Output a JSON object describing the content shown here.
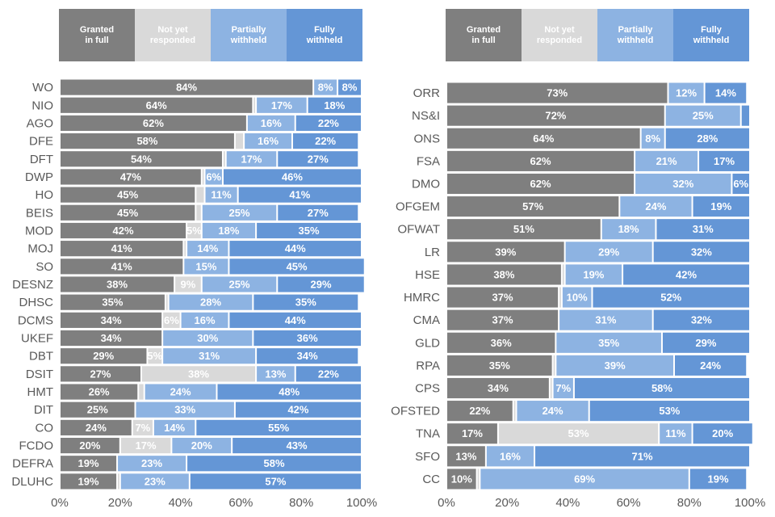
{
  "colors": {
    "granted": "#7f7f7f",
    "notyet": "#d9d9d9",
    "partial": "#8db3e2",
    "full": "#6496d6"
  },
  "legend": [
    {
      "key": "granted",
      "label": "Granted\nin full"
    },
    {
      "key": "notyet",
      "label": "Not yet\nresponded"
    },
    {
      "key": "partial",
      "label": "Partially\nwithheld"
    },
    {
      "key": "full",
      "label": "Fully\nwithheld"
    }
  ],
  "chart_data": [
    {
      "type": "bar",
      "orientation": "horizontal",
      "stacked": true,
      "title": "",
      "xlabel": "",
      "ylabel": "",
      "xlim": [
        0,
        100
      ],
      "x_ticks": [
        "0%",
        "20%",
        "40%",
        "60%",
        "80%",
        "100%"
      ],
      "legend_position": "top",
      "categories": [
        "WO",
        "NIO",
        "AGO",
        "DFE",
        "DFT",
        "DWP",
        "HO",
        "BEIS",
        "MOD",
        "MOJ",
        "SO",
        "DESNZ",
        "DHSC",
        "DCMS",
        "UKEF",
        "DBT",
        "DSIT",
        "HMT",
        "DIT",
        "CO",
        "FCDO",
        "DEFRA",
        "DLUHC"
      ],
      "series": [
        {
          "name": "Granted in full",
          "key": "granted",
          "values": [
            84,
            64,
            62,
            58,
            54,
            47,
            45,
            45,
            42,
            41,
            41,
            38,
            35,
            34,
            34,
            29,
            27,
            26,
            25,
            24,
            20,
            19,
            19
          ]
        },
        {
          "name": "Not yet responded",
          "key": "notyet",
          "values": [
            0,
            1,
            0,
            3,
            1,
            1,
            3,
            2,
            5,
            1,
            0,
            9,
            1,
            6,
            0,
            5,
            38,
            2,
            0,
            7,
            17,
            0,
            1
          ]
        },
        {
          "name": "Partially withheld",
          "key": "partial",
          "values": [
            8,
            17,
            16,
            16,
            17,
            6,
            11,
            25,
            18,
            14,
            15,
            25,
            28,
            16,
            30,
            31,
            13,
            24,
            33,
            14,
            20,
            23,
            23
          ]
        },
        {
          "name": "Fully withheld",
          "key": "full",
          "values": [
            8,
            18,
            22,
            22,
            27,
            46,
            41,
            27,
            35,
            44,
            45,
            29,
            35,
            44,
            36,
            34,
            22,
            48,
            42,
            55,
            43,
            58,
            57
          ]
        }
      ]
    },
    {
      "type": "bar",
      "orientation": "horizontal",
      "stacked": true,
      "title": "",
      "xlabel": "",
      "ylabel": "",
      "xlim": [
        0,
        100
      ],
      "x_ticks": [
        "0%",
        "20%",
        "40%",
        "60%",
        "80%",
        "100%"
      ],
      "legend_position": "top",
      "categories": [
        "ORR",
        "NS&I",
        "ONS",
        "FSA",
        "DMO",
        "OFGEM",
        "OFWAT",
        "LR",
        "HSE",
        "HMRC",
        "CMA",
        "GLD",
        "RPA",
        "CPS",
        "OFSTED",
        "TNA",
        "SFO",
        "CC"
      ],
      "series": [
        {
          "name": "Granted in full",
          "key": "granted",
          "values": [
            73,
            72,
            64,
            62,
            62,
            57,
            51,
            39,
            38,
            37,
            37,
            36,
            35,
            34,
            22,
            17,
            13,
            10
          ]
        },
        {
          "name": "Not yet responded",
          "key": "notyet",
          "values": [
            0,
            0,
            0,
            0,
            0,
            0,
            0,
            0,
            1,
            1,
            0,
            0,
            1,
            1,
            1,
            53,
            0,
            1
          ]
        },
        {
          "name": "Partially withheld",
          "key": "partial",
          "values": [
            12,
            25,
            8,
            21,
            32,
            24,
            18,
            29,
            19,
            10,
            31,
            35,
            39,
            7,
            24,
            11,
            16,
            69
          ]
        },
        {
          "name": "Fully withheld",
          "key": "full",
          "values": [
            14,
            3,
            28,
            17,
            6,
            19,
            31,
            32,
            42,
            52,
            32,
            29,
            24,
            58,
            53,
            20,
            71,
            19
          ]
        }
      ]
    }
  ]
}
